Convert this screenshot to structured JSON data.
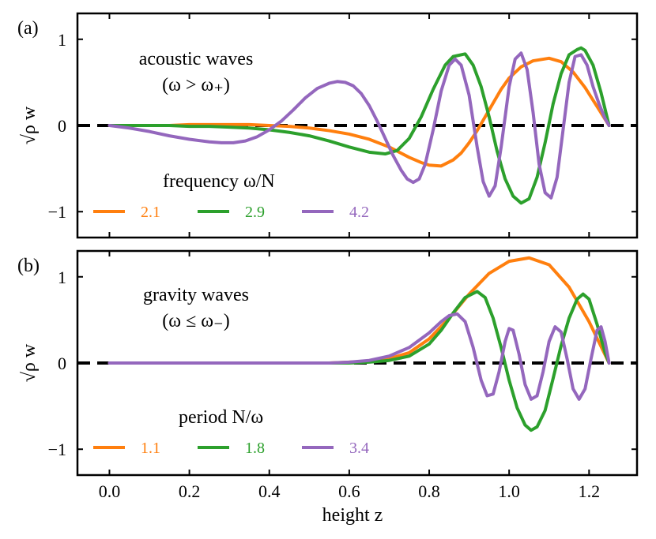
{
  "chart_data": [
    {
      "type": "line",
      "panel_label": "(a)",
      "xlim": [
        -0.08,
        1.32
      ],
      "ylim": [
        -1.3,
        1.3
      ],
      "xlabel": "",
      "ylabel": "√ρ w",
      "xticks": [
        0.0,
        0.2,
        0.4,
        0.6,
        0.8,
        1.0,
        1.2
      ],
      "yticks": [
        -1,
        0,
        1
      ],
      "ytick_labels": [
        "−1",
        "0",
        "1"
      ],
      "zero_line": true,
      "annotation_lines": [
        "acoustic waves",
        "(ω > ω₊)"
      ],
      "legend_title": "frequency ω/N",
      "legend_placement": "bottom-left",
      "series": [
        {
          "name": "2.1",
          "color": "#ff7f0e",
          "x": [
            0.0,
            0.05,
            0.1,
            0.15,
            0.2,
            0.25,
            0.3,
            0.35,
            0.4,
            0.45,
            0.5,
            0.55,
            0.6,
            0.65,
            0.7,
            0.75,
            0.78,
            0.8,
            0.83,
            0.86,
            0.88,
            0.9,
            0.92,
            0.95,
            0.98,
            1.0,
            1.03,
            1.06,
            1.1,
            1.13,
            1.16,
            1.19,
            1.22,
            1.25
          ],
          "y": [
            0.0,
            0.0,
            0.0,
            0.0,
            0.01,
            0.01,
            0.01,
            0.01,
            0.0,
            -0.01,
            -0.03,
            -0.06,
            -0.1,
            -0.16,
            -0.25,
            -0.37,
            -0.43,
            -0.46,
            -0.47,
            -0.4,
            -0.32,
            -0.2,
            -0.06,
            0.18,
            0.42,
            0.55,
            0.68,
            0.75,
            0.78,
            0.74,
            0.62,
            0.44,
            0.22,
            0.0
          ]
        },
        {
          "name": "2.9",
          "color": "#2ca02c",
          "x": [
            0.0,
            0.05,
            0.1,
            0.15,
            0.2,
            0.25,
            0.3,
            0.35,
            0.4,
            0.45,
            0.5,
            0.55,
            0.6,
            0.65,
            0.69,
            0.72,
            0.75,
            0.78,
            0.81,
            0.84,
            0.86,
            0.89,
            0.91,
            0.93,
            0.95,
            0.97,
            0.99,
            1.01,
            1.03,
            1.05,
            1.07,
            1.09,
            1.11,
            1.13,
            1.15,
            1.17,
            1.18,
            1.19,
            1.21,
            1.23,
            1.25
          ],
          "y": [
            0.0,
            0.0,
            0.0,
            0.0,
            -0.01,
            -0.01,
            -0.02,
            -0.03,
            -0.05,
            -0.08,
            -0.12,
            -0.18,
            -0.25,
            -0.31,
            -0.33,
            -0.29,
            -0.15,
            0.1,
            0.42,
            0.7,
            0.8,
            0.83,
            0.7,
            0.45,
            0.1,
            -0.3,
            -0.62,
            -0.82,
            -0.9,
            -0.85,
            -0.6,
            -0.2,
            0.25,
            0.6,
            0.82,
            0.88,
            0.9,
            0.87,
            0.7,
            0.38,
            0.0
          ]
        },
        {
          "name": "4.2",
          "color": "#9467bd",
          "x": [
            0.0,
            0.05,
            0.1,
            0.15,
            0.2,
            0.25,
            0.28,
            0.31,
            0.34,
            0.37,
            0.4,
            0.43,
            0.46,
            0.49,
            0.52,
            0.55,
            0.57,
            0.59,
            0.61,
            0.63,
            0.65,
            0.67,
            0.69,
            0.71,
            0.73,
            0.745,
            0.76,
            0.775,
            0.79,
            0.81,
            0.83,
            0.85,
            0.865,
            0.88,
            0.9,
            0.92,
            0.935,
            0.95,
            0.965,
            0.98,
            1.0,
            1.015,
            1.03,
            1.045,
            1.06,
            1.075,
            1.09,
            1.105,
            1.12,
            1.135,
            1.15,
            1.165,
            1.18,
            1.195,
            1.21,
            1.225,
            1.24,
            1.25
          ],
          "y": [
            0.0,
            -0.03,
            -0.07,
            -0.12,
            -0.16,
            -0.19,
            -0.2,
            -0.2,
            -0.18,
            -0.13,
            -0.05,
            0.05,
            0.18,
            0.32,
            0.43,
            0.49,
            0.51,
            0.5,
            0.46,
            0.37,
            0.23,
            0.05,
            -0.15,
            -0.35,
            -0.52,
            -0.62,
            -0.66,
            -0.62,
            -0.45,
            -0.05,
            0.4,
            0.7,
            0.77,
            0.7,
            0.35,
            -0.25,
            -0.65,
            -0.82,
            -0.7,
            -0.25,
            0.45,
            0.77,
            0.84,
            0.65,
            0.15,
            -0.45,
            -0.78,
            -0.84,
            -0.6,
            -0.05,
            0.5,
            0.8,
            0.82,
            0.7,
            0.45,
            0.25,
            0.08,
            0.0
          ]
        }
      ]
    },
    {
      "type": "line",
      "panel_label": "(b)",
      "xlim": [
        -0.08,
        1.32
      ],
      "ylim": [
        -1.3,
        1.3
      ],
      "xlabel": "height z",
      "ylabel": "√ρ w",
      "xticks": [
        0.0,
        0.2,
        0.4,
        0.6,
        0.8,
        1.0,
        1.2
      ],
      "xtick_labels": [
        "0.0",
        "0.2",
        "0.4",
        "0.6",
        "0.8",
        "1.0",
        "1.2"
      ],
      "yticks": [
        -1,
        0,
        1
      ],
      "ytick_labels": [
        "−1",
        "0",
        "1"
      ],
      "zero_line": true,
      "annotation_lines": [
        "gravity waves",
        "(ω ≤ ω₋)"
      ],
      "legend_title": "period N/ω",
      "legend_placement": "bottom-left",
      "series": [
        {
          "name": "1.1",
          "color": "#ff7f0e",
          "x": [
            0.0,
            0.1,
            0.2,
            0.3,
            0.4,
            0.5,
            0.55,
            0.6,
            0.65,
            0.7,
            0.75,
            0.8,
            0.85,
            0.9,
            0.95,
            1.0,
            1.05,
            1.1,
            1.15,
            1.2,
            1.25
          ],
          "y": [
            0.0,
            0.0,
            0.0,
            0.0,
            0.0,
            0.0,
            0.0,
            0.01,
            0.02,
            0.05,
            0.12,
            0.28,
            0.52,
            0.8,
            1.04,
            1.18,
            1.22,
            1.14,
            0.88,
            0.48,
            0.0
          ]
        },
        {
          "name": "1.8",
          "color": "#2ca02c",
          "x": [
            0.0,
            0.1,
            0.2,
            0.3,
            0.4,
            0.5,
            0.55,
            0.6,
            0.65,
            0.7,
            0.75,
            0.8,
            0.83,
            0.86,
            0.89,
            0.92,
            0.94,
            0.96,
            0.98,
            1.0,
            1.02,
            1.04,
            1.055,
            1.07,
            1.09,
            1.11,
            1.13,
            1.15,
            1.17,
            1.185,
            1.2,
            1.22,
            1.24,
            1.25
          ],
          "y": [
            0.0,
            0.0,
            0.0,
            0.0,
            0.0,
            0.0,
            0.0,
            0.0,
            0.01,
            0.03,
            0.08,
            0.22,
            0.38,
            0.58,
            0.76,
            0.83,
            0.76,
            0.52,
            0.18,
            -0.2,
            -0.52,
            -0.72,
            -0.78,
            -0.74,
            -0.55,
            -0.18,
            0.2,
            0.52,
            0.74,
            0.8,
            0.74,
            0.45,
            0.12,
            0.0
          ]
        },
        {
          "name": "3.4",
          "color": "#9467bd",
          "x": [
            0.0,
            0.1,
            0.2,
            0.3,
            0.4,
            0.5,
            0.55,
            0.6,
            0.65,
            0.7,
            0.75,
            0.8,
            0.83,
            0.85,
            0.87,
            0.89,
            0.91,
            0.93,
            0.945,
            0.96,
            0.975,
            0.99,
            1.0,
            1.01,
            1.025,
            1.04,
            1.055,
            1.07,
            1.085,
            1.1,
            1.115,
            1.13,
            1.145,
            1.16,
            1.175,
            1.19,
            1.205,
            1.22,
            1.23,
            1.24,
            1.25
          ],
          "y": [
            0.0,
            0.0,
            0.0,
            0.0,
            0.0,
            0.0,
            0.0,
            0.01,
            0.03,
            0.08,
            0.18,
            0.35,
            0.48,
            0.55,
            0.57,
            0.48,
            0.18,
            -0.2,
            -0.38,
            -0.36,
            -0.1,
            0.25,
            0.4,
            0.38,
            0.1,
            -0.25,
            -0.42,
            -0.38,
            -0.1,
            0.25,
            0.42,
            0.36,
            0.05,
            -0.3,
            -0.42,
            -0.3,
            0.05,
            0.38,
            0.42,
            0.25,
            0.0
          ]
        }
      ]
    }
  ]
}
